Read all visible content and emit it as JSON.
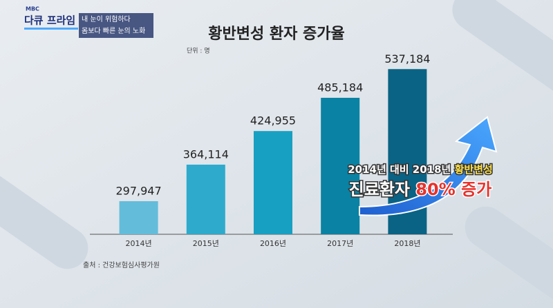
{
  "program": {
    "broadcaster": "MBC",
    "name": "다큐 프라임",
    "episode_lines": [
      "내 눈이 위험하다",
      "몸보다 빠른 눈의 노화"
    ]
  },
  "chart_data": {
    "type": "bar",
    "title": "황반변성 환자 증가율",
    "unit_note": "단위 : 명",
    "categories": [
      "2014년",
      "2015년",
      "2016년",
      "2017년",
      "2018년"
    ],
    "values": [
      297947,
      364114,
      424955,
      485184,
      537184
    ],
    "value_labels": [
      "297,947",
      "364,114",
      "424,955",
      "485,184",
      "537,184"
    ],
    "colors": [
      "#63bcda",
      "#2eaacc",
      "#17a0c2",
      "#0a82a3",
      "#0a6384"
    ],
    "ylim": [
      238000,
      560000
    ],
    "source": "출처 : 건강보험심사평가원",
    "annotation": {
      "line1": "2014년 대비 2018년",
      "line1_highlight": "황반변성",
      "line2": "진료환자",
      "line2_highlight": "80%",
      "line2_end": "증가"
    }
  }
}
